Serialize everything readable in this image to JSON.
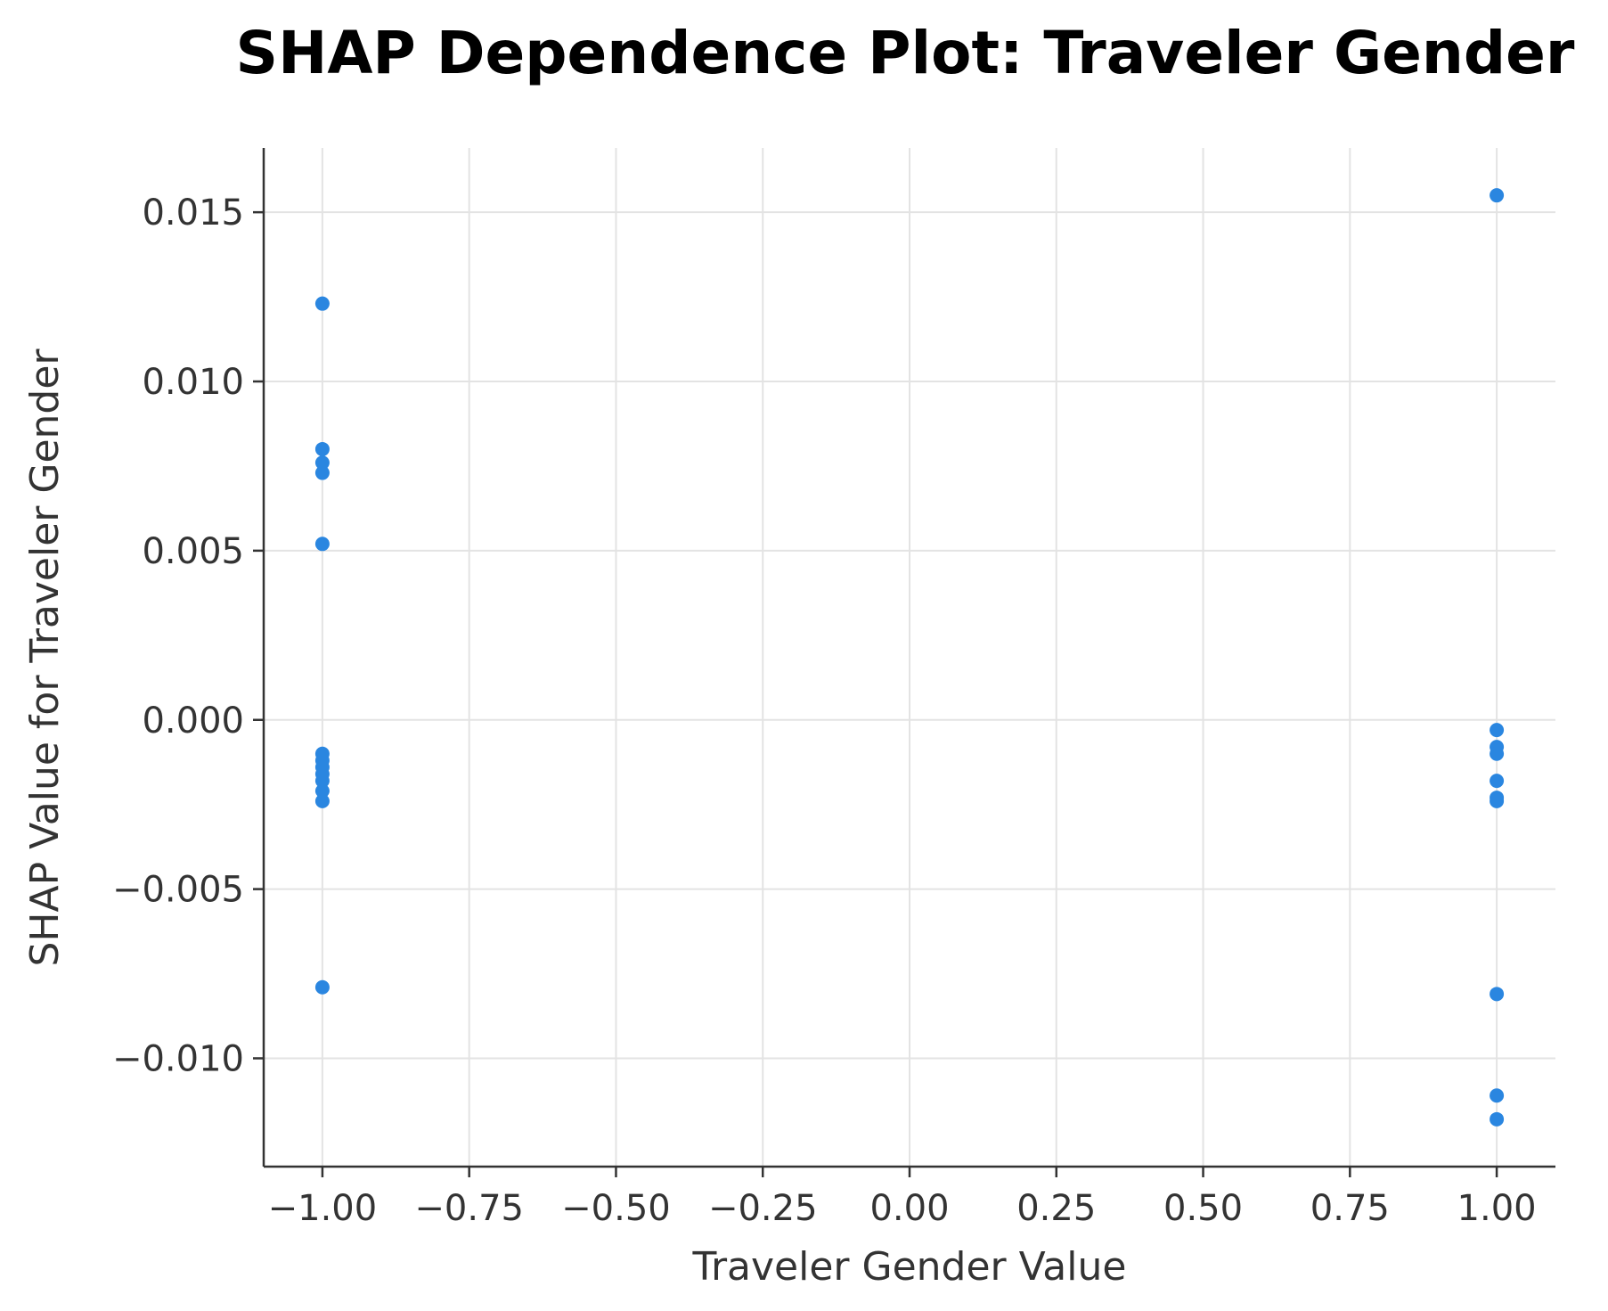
{
  "chart_data": {
    "type": "scatter",
    "title": "SHAP Dependence Plot: Traveler Gender",
    "xlabel": "Traveler Gender Value",
    "ylabel": "SHAP Value for Traveler Gender",
    "xlim": [
      -1.1,
      1.1
    ],
    "ylim": [
      -0.0132,
      0.0169
    ],
    "x_ticks": [
      -1.0,
      -0.75,
      -0.5,
      -0.25,
      0.0,
      0.25,
      0.5,
      0.75,
      1.0
    ],
    "x_tick_labels": [
      "−1.00",
      "−0.75",
      "−0.50",
      "−0.25",
      "0.00",
      "0.25",
      "0.50",
      "0.75",
      "1.00"
    ],
    "y_ticks": [
      -0.01,
      -0.005,
      0.0,
      0.005,
      0.01,
      0.015
    ],
    "y_tick_labels": [
      "−0.010",
      "−0.005",
      "0.000",
      "0.005",
      "0.010",
      "0.015"
    ],
    "grid": true,
    "point_color": "#2a86e0",
    "points": [
      {
        "x": -1.0,
        "y": 0.0123
      },
      {
        "x": -1.0,
        "y": 0.008
      },
      {
        "x": -1.0,
        "y": 0.0076
      },
      {
        "x": -1.0,
        "y": 0.0073
      },
      {
        "x": -1.0,
        "y": 0.0052
      },
      {
        "x": -1.0,
        "y": -0.001
      },
      {
        "x": -1.0,
        "y": -0.0012
      },
      {
        "x": -1.0,
        "y": -0.0014
      },
      {
        "x": -1.0,
        "y": -0.0016
      },
      {
        "x": -1.0,
        "y": -0.0018
      },
      {
        "x": -1.0,
        "y": -0.0021
      },
      {
        "x": -1.0,
        "y": -0.0024
      },
      {
        "x": -1.0,
        "y": -0.0079
      },
      {
        "x": 1.0,
        "y": 0.0155
      },
      {
        "x": 1.0,
        "y": -0.0003
      },
      {
        "x": 1.0,
        "y": -0.0008
      },
      {
        "x": 1.0,
        "y": -0.001
      },
      {
        "x": 1.0,
        "y": -0.0018
      },
      {
        "x": 1.0,
        "y": -0.0023
      },
      {
        "x": 1.0,
        "y": -0.0024
      },
      {
        "x": 1.0,
        "y": -0.0081
      },
      {
        "x": 1.0,
        "y": -0.0111
      },
      {
        "x": 1.0,
        "y": -0.0118
      }
    ]
  }
}
